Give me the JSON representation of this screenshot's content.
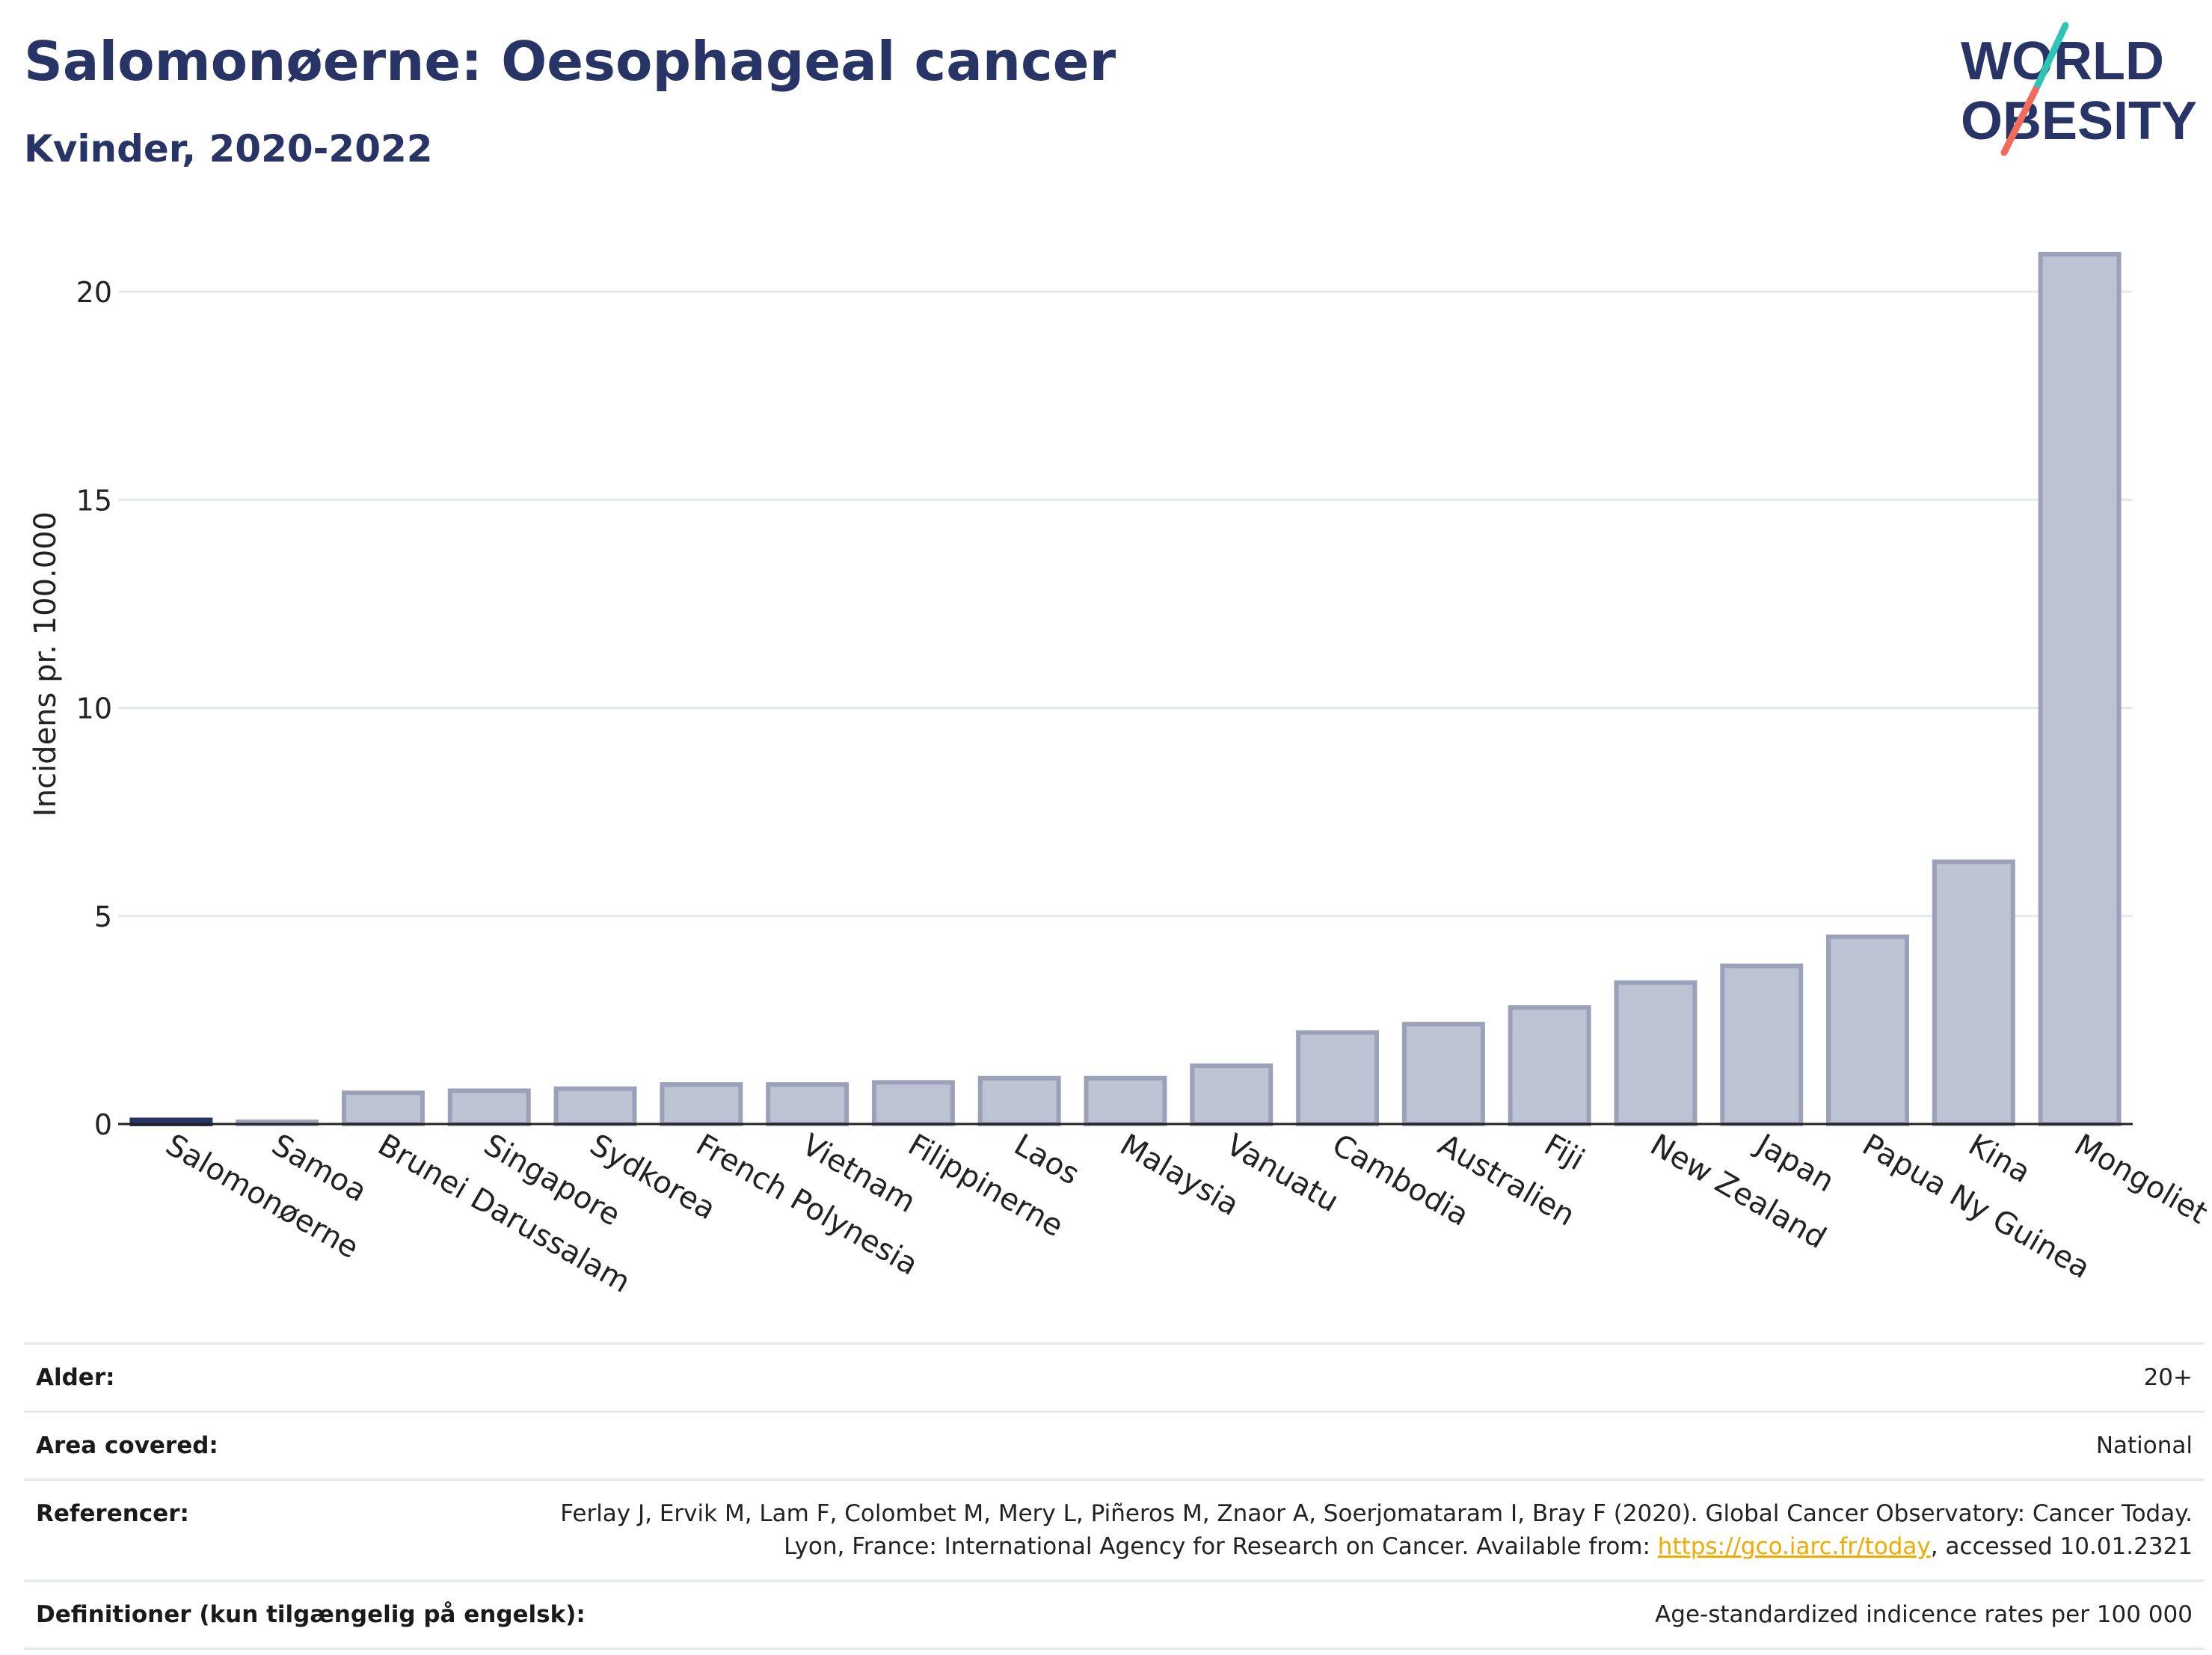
{
  "header": {
    "title": "Salomonøerne: Oesophageal cancer",
    "subtitle": "Kvinder, 2020-2022"
  },
  "logo": {
    "text_line1": "WORLD",
    "text_line2": "OBESITY",
    "colors": {
      "text": "#283465",
      "slash_top": "#2ec4b6",
      "slash_bottom": "#f26b5b"
    }
  },
  "colors": {
    "bar_fill": "#bec3d3",
    "bar_stroke": "#9aa1b8",
    "highlight_bar": "#283465",
    "grid": "#e6e8f0",
    "axis": "#222222",
    "title": "#283465"
  },
  "chart_data": {
    "type": "bar",
    "title": "Salomonøerne: Oesophageal cancer",
    "subtitle": "Kvinder, 2020-2022",
    "xlabel": "",
    "ylabel": "Incidens pr. 100.000",
    "ylim": [
      0,
      22
    ],
    "yticks": [
      0,
      5,
      10,
      15,
      20
    ],
    "grid": true,
    "highlight_category": "Salomonøerne",
    "categories": [
      "Salomonøerne",
      "Samoa",
      "Brunei Darussalam",
      "Singapore",
      "Sydkorea",
      "French Polynesia",
      "Vietnam",
      "Filippinerne",
      "Laos",
      "Malaysia",
      "Vanuatu",
      "Cambodia",
      "Australien",
      "Fiji",
      "New Zealand",
      "Japan",
      "Papua Ny Guinea",
      "Kina",
      "Mongoliet"
    ],
    "values": [
      0.1,
      0.05,
      0.75,
      0.8,
      0.85,
      0.95,
      0.95,
      1.0,
      1.1,
      1.1,
      1.4,
      2.2,
      2.4,
      2.8,
      3.4,
      3.8,
      4.5,
      6.3,
      20.9
    ]
  },
  "meta": {
    "rows": [
      {
        "label": "Alder:",
        "value": "20+"
      },
      {
        "label": "Area covered:",
        "value": "National"
      },
      {
        "label": "Referencer:",
        "value_before": "Ferlay J, Ervik M, Lam F, Colombet M, Mery L, Piñeros M, Znaor A, Soerjomataram I, Bray F (2020). Global Cancer Observatory: Cancer Today. Lyon, France: International Agency for Research on Cancer. Available from: ",
        "link": "https://gco.iarc.fr/today",
        "value_after": ", accessed 10.01.2321"
      },
      {
        "label": "Definitioner (kun tilgængelig på engelsk):",
        "value": "Age-standardized indicence rates per 100 000"
      }
    ]
  }
}
